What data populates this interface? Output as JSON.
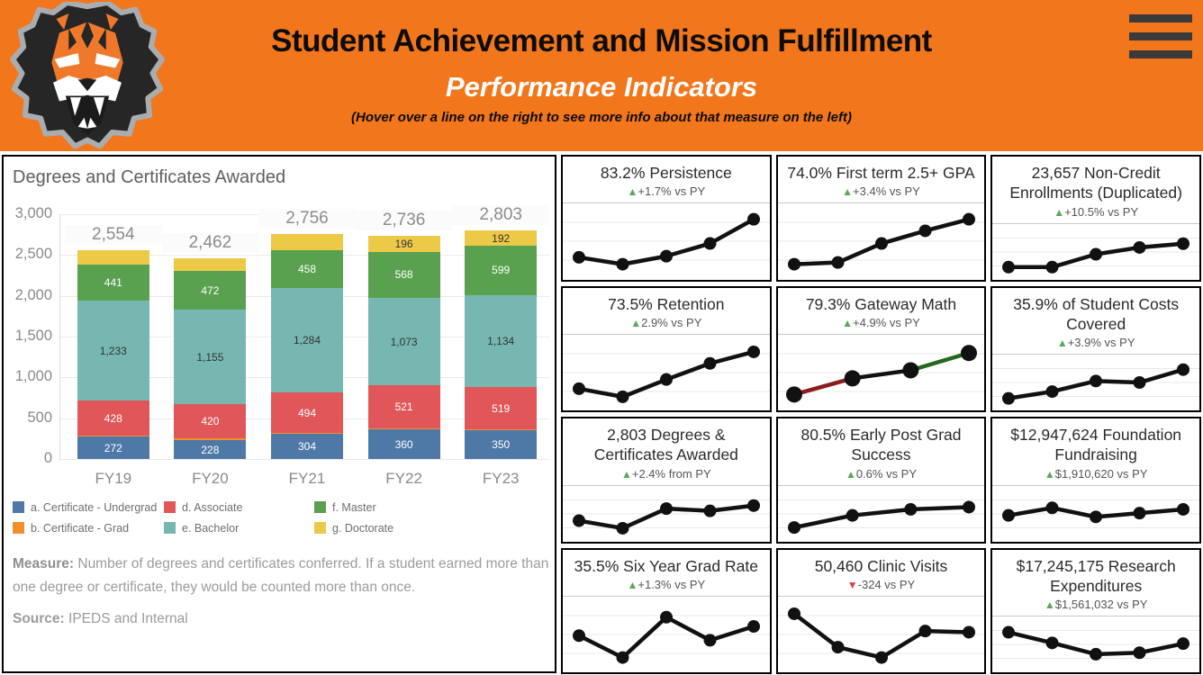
{
  "header": {
    "title": "Student Achievement and Mission Fulfillment",
    "subtitle": "Performance Indicators",
    "note": "(Hover over a line on the right to see more info about that measure on the left)",
    "logo_icon": "tiger-mascot-logo",
    "menu_icon": "hamburger-menu-icon"
  },
  "colors": {
    "header_bg": "#F2761C",
    "delta_up": "#5aa75a",
    "delta_down": "#e04040",
    "spark_line": "#111111",
    "spark_grid": "#e8e8e8"
  },
  "left_panel": {
    "title": "Degrees and Certificates Awarded",
    "measure_label": "Measure:",
    "measure_text": " Number of degrees and certificates conferred. If a student earned more than one degree or certificate, they would be counted more than once.",
    "source_label": "Source:",
    "source_text": " IPEDS and Internal"
  },
  "chart_data": [
    {
      "type": "bar",
      "stacked": true,
      "title": "Degrees and Certificates Awarded",
      "categories": [
        "FY19",
        "FY20",
        "FY21",
        "FY22",
        "FY23"
      ],
      "series": [
        {
          "name": "a. Certificate - Undergrad",
          "color": "#4e79a7",
          "label_color": "#ffffff",
          "values": [
            272,
            228,
            304,
            360,
            350
          ],
          "labels": [
            "272",
            "228",
            "304",
            "360",
            "350"
          ]
        },
        {
          "name": "b. Certificate - Grad",
          "color": "#f28e2b",
          "label_color": "#333333",
          "values": [
            12,
            25,
            16,
            18,
            9
          ],
          "values_estimated": true,
          "labels": [
            null,
            null,
            null,
            null,
            null
          ]
        },
        {
          "name": "d. Associate",
          "color": "#e15759",
          "label_color": "#ffffff",
          "values": [
            428,
            420,
            494,
            521,
            519
          ],
          "labels": [
            "428",
            "420",
            "494",
            "521",
            "519"
          ]
        },
        {
          "name": "e. Bachelor",
          "color": "#76b7b2",
          "label_color": "#333333",
          "values": [
            1233,
            1155,
            1284,
            1073,
            1134
          ],
          "labels": [
            "1,233",
            "1,155",
            "1,284",
            "1,073",
            "1,134"
          ]
        },
        {
          "name": "f. Master",
          "color": "#59a14f",
          "label_color": "#ffffff",
          "values": [
            441,
            472,
            458,
            568,
            599
          ],
          "labels": [
            "441",
            "472",
            "458",
            "568",
            "599"
          ]
        },
        {
          "name": "g. Doctorate",
          "color": "#edc948",
          "label_color": "#333333",
          "values": [
            168,
            162,
            200,
            196,
            192
          ],
          "values_partially_estimated": true,
          "labels": [
            null,
            null,
            null,
            "196",
            "192"
          ]
        }
      ],
      "totals": [
        2554,
        2462,
        2756,
        2736,
        2803
      ],
      "total_labels": [
        "2,554",
        "2,462",
        "2,756",
        "2,736",
        "2,803"
      ],
      "ylim": [
        0,
        3000
      ],
      "yticks": [
        "0",
        "500",
        "1,000",
        "1,500",
        "2,000",
        "2,500",
        "3,000"
      ],
      "grid": true,
      "legend_position": "bottom",
      "legend_columns": [
        [
          "a. Certificate - Undergrad",
          "b. Certificate - Grad"
        ],
        [
          "d. Associate",
          "e. Bachelor"
        ],
        [
          "f. Master",
          "g. Doctorate"
        ]
      ]
    },
    {
      "type": "line",
      "title": "83.2% Persistence",
      "delta": "+1.7% vs PY",
      "delta_direction": "up",
      "values_normalized": [
        0.22,
        0.1,
        0.24,
        0.46,
        0.88
      ]
    },
    {
      "type": "line",
      "title": "74.0% First term 2.5+ GPA",
      "delta": "+3.4% vs PY",
      "delta_direction": "up",
      "values_normalized": [
        0.1,
        0.13,
        0.46,
        0.68,
        0.88
      ]
    },
    {
      "type": "line",
      "title": "23,657 Non-Credit Enrollments (Duplicated)",
      "delta": "+10.5% vs PY",
      "delta_direction": "up",
      "values_normalized": [
        0.1,
        0.1,
        0.44,
        0.62,
        0.72
      ]
    },
    {
      "type": "line",
      "title": "73.5% Retention",
      "delta": "2.9% vs PY",
      "delta_direction": "up",
      "values_normalized": [
        0.22,
        0.08,
        0.38,
        0.66,
        0.86
      ]
    },
    {
      "type": "line",
      "title": "79.3% Gateway Math",
      "delta": "+4.9% vs PY",
      "delta_direction": "up",
      "values_normalized": [
        0.12,
        0.4,
        0.54,
        0.84
      ],
      "segment_colors": [
        "#8c1d1d",
        "#111111",
        "#23691f"
      ]
    },
    {
      "type": "line",
      "title": "35.9% of Student Costs Covered",
      "delta": "+3.9% vs PY",
      "delta_direction": "up",
      "values_normalized": [
        0.08,
        0.26,
        0.54,
        0.5,
        0.84
      ]
    },
    {
      "type": "line",
      "title": "2,803 Degrees & Certificates Awarded",
      "delta": "+2.4% from PY",
      "delta_direction": "up",
      "values_normalized": [
        0.32,
        0.12,
        0.64,
        0.58,
        0.72
      ]
    },
    {
      "type": "line",
      "title": "80.5% Early Post Grad Success",
      "delta": "0.6% vs PY",
      "delta_direction": "up",
      "values_normalized": [
        0.14,
        0.46,
        0.62,
        0.68
      ]
    },
    {
      "type": "line",
      "title": "$12,947,624 Foundation Fundraising",
      "delta": "$1,910,620 vs PY",
      "delta_direction": "up",
      "values_normalized": [
        0.46,
        0.66,
        0.42,
        0.52,
        0.62
      ]
    },
    {
      "type": "line",
      "title": "35.5% Six Year Grad Rate",
      "delta": "+1.3% vs PY",
      "delta_direction": "up",
      "values_normalized": [
        0.48,
        0.1,
        0.8,
        0.4,
        0.64
      ]
    },
    {
      "type": "line",
      "title": "50,460 Clinic Visits",
      "delta": "-324 vs PY",
      "delta_direction": "down",
      "values_normalized": [
        0.86,
        0.28,
        0.1,
        0.56,
        0.54
      ]
    },
    {
      "type": "line",
      "title": "$17,245,175 Research Expenditures",
      "delta": "$1,561,032 vs PY",
      "delta_direction": "up",
      "values_normalized": [
        0.82,
        0.54,
        0.24,
        0.28,
        0.52
      ]
    }
  ]
}
